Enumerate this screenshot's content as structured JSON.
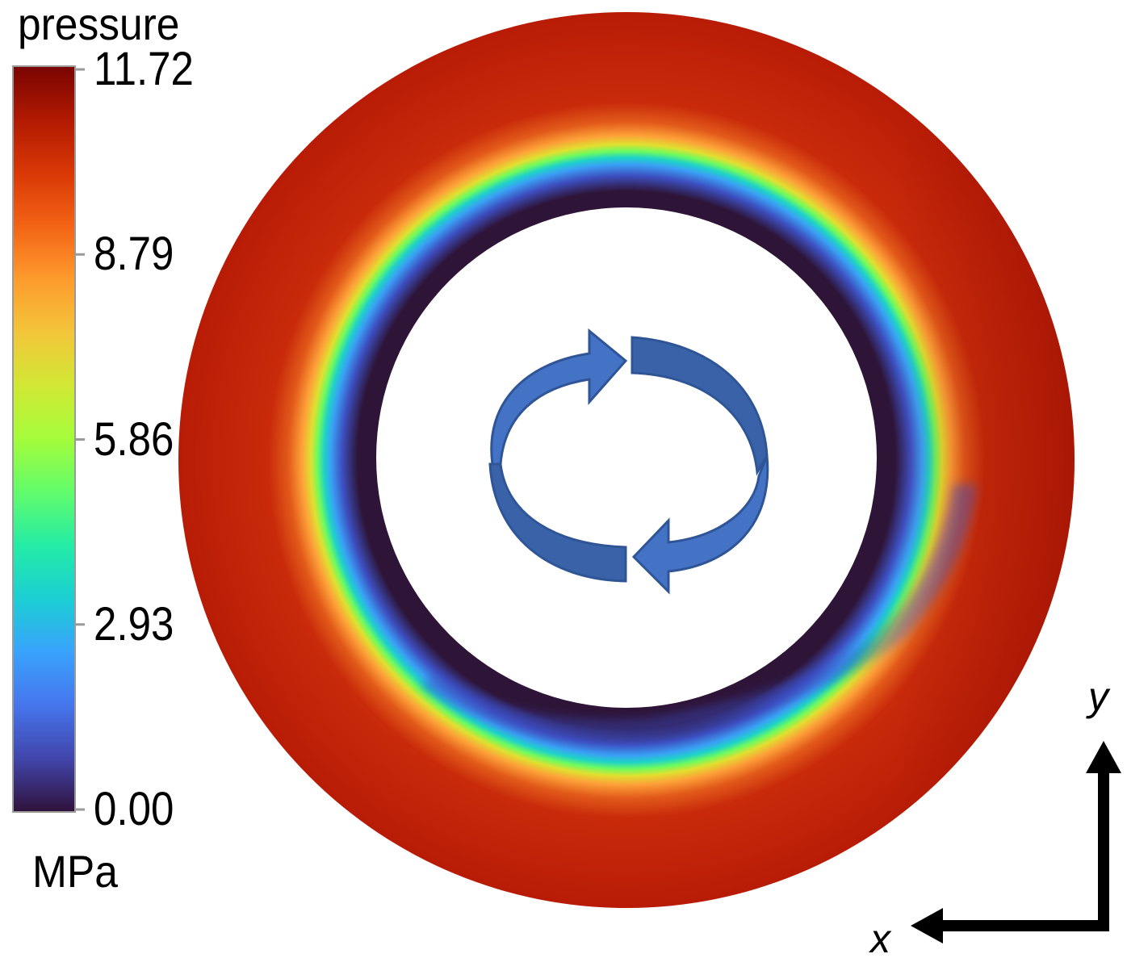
{
  "colorbar": {
    "title": "pressure",
    "unit": "MPa",
    "ticks": [
      "11.72",
      "8.79",
      "5.86",
      "2.93",
      "0.00"
    ],
    "range": [
      0.0,
      11.72
    ],
    "colormap": [
      "#30123b",
      "#4145ab",
      "#4675ed",
      "#39a2fc",
      "#1bcfd4",
      "#24eca6",
      "#61fc6c",
      "#a4fc3b",
      "#d1e834",
      "#f3c63a",
      "#fe9b2d",
      "#f36315",
      "#d93806",
      "#b11901",
      "#7a0403"
    ]
  },
  "field": {
    "outer_ring_color": "#c4260a",
    "dark_band_color": "#2e1437",
    "inner_hole_color": "#ffffff"
  },
  "rotation_arrows": {
    "icon": "rotation-arrows-icon",
    "fill": "#4472c4",
    "stroke": "#2f5597"
  },
  "axes": {
    "x_label": "x",
    "y_label": "y"
  }
}
